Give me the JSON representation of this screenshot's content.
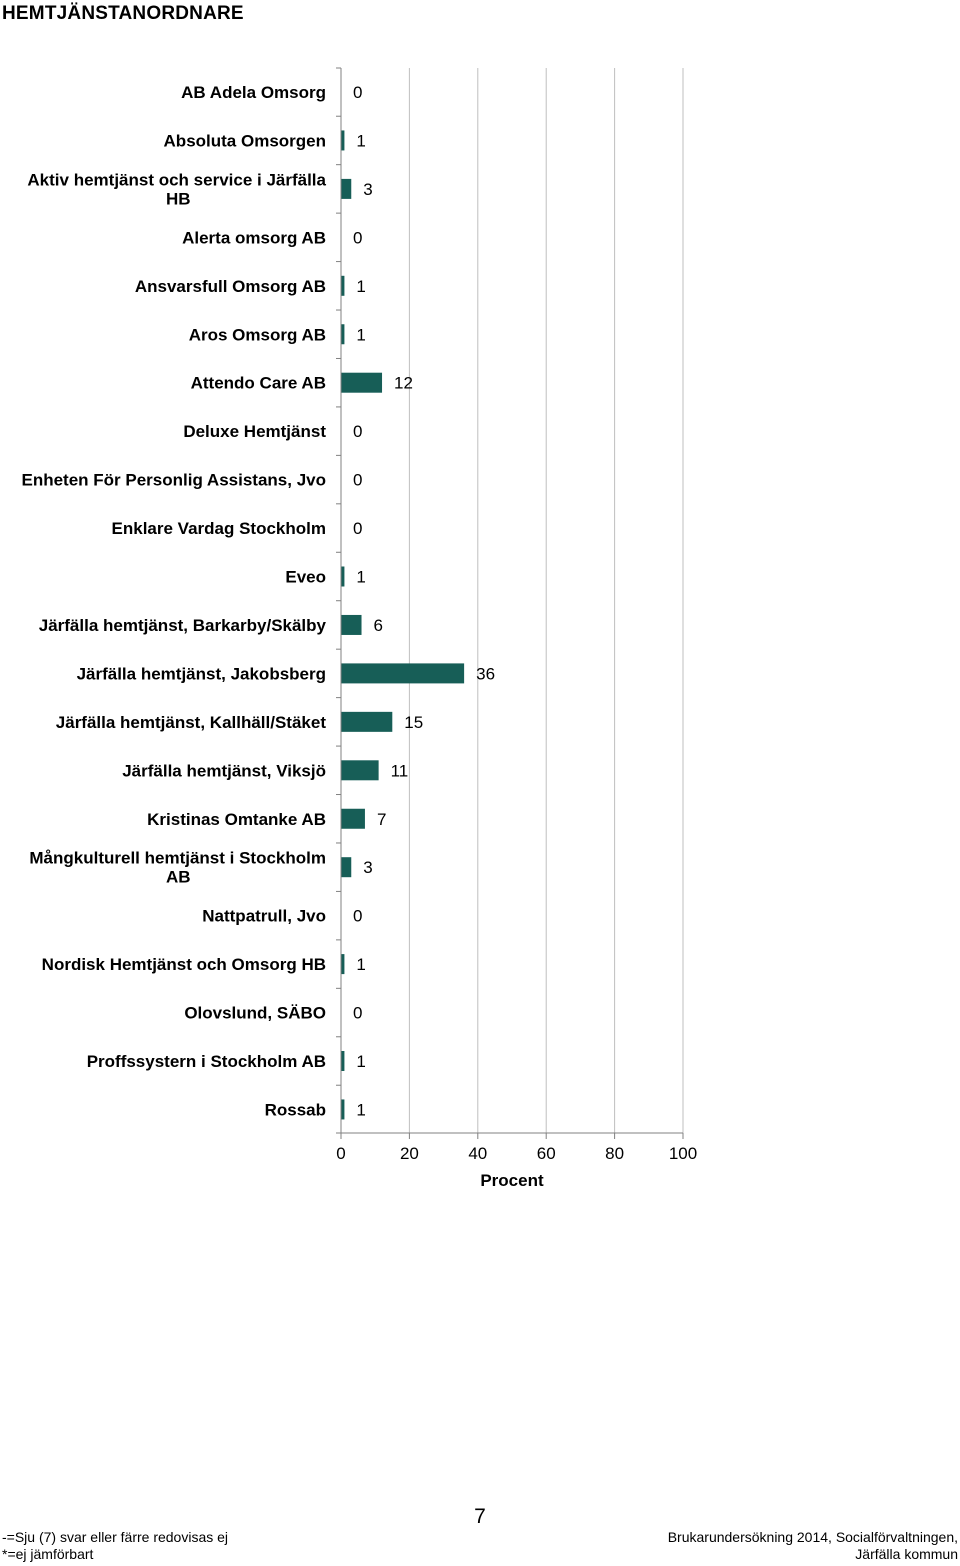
{
  "page": {
    "title": "HEMTJÄNSTANORDNARE",
    "page_number": "7",
    "footer_left": [
      "-=Sju (7) svar eller färre redovisas ej",
      "*=ej jämförbart"
    ],
    "footer_right": [
      "Brukarundersökning 2014, Socialförvaltningen,",
      "Järfälla kommun"
    ]
  },
  "chart_data": {
    "type": "bar",
    "orientation": "horizontal",
    "categories": [
      [
        "AB Adela Omsorg"
      ],
      [
        "Absoluta Omsorgen"
      ],
      [
        "Aktiv hemtjänst och service i Järfälla",
        "HB"
      ],
      [
        "Alerta omsorg AB"
      ],
      [
        "Ansvarsfull Omsorg AB"
      ],
      [
        "Aros Omsorg AB"
      ],
      [
        "Attendo Care AB"
      ],
      [
        "Deluxe Hemtjänst"
      ],
      [
        "Enheten För Personlig Assistans, Jvo"
      ],
      [
        "Enklare Vardag Stockholm"
      ],
      [
        "Eveo"
      ],
      [
        "Järfälla hemtjänst, Barkarby/Skälby"
      ],
      [
        "Järfälla hemtjänst, Jakobsberg"
      ],
      [
        "Järfälla hemtjänst, Kallhäll/Stäket"
      ],
      [
        "Järfälla hemtjänst, Viksjö"
      ],
      [
        "Kristinas Omtanke AB"
      ],
      [
        "Mångkulturell hemtjänst i Stockholm",
        "AB"
      ],
      [
        "Nattpatrull, Jvo"
      ],
      [
        "Nordisk Hemtjänst och Omsorg HB"
      ],
      [
        "Olovslund, SÄBO"
      ],
      [
        "Proffssystern i Stockholm AB"
      ],
      [
        "Rossab"
      ]
    ],
    "values": [
      0,
      1,
      3,
      0,
      1,
      1,
      12,
      0,
      0,
      0,
      1,
      6,
      36,
      15,
      11,
      7,
      3,
      0,
      1,
      0,
      1,
      1
    ],
    "value_labels": [
      "0",
      "1",
      "3",
      "0",
      "1",
      "1",
      "12",
      "0",
      "0",
      "0",
      "1",
      "6",
      "36",
      "15",
      "11",
      "7",
      "3",
      "0",
      "1",
      "0",
      "1",
      "1"
    ],
    "xlabel": "Procent",
    "xlim": [
      0,
      100
    ],
    "xticks": [
      "0",
      "20",
      "40",
      "60",
      "80",
      "100"
    ],
    "grid": true,
    "legend": "none",
    "bar_color": "#175e57",
    "grid_color": "#bfbfbf",
    "axis_color": "#808080"
  }
}
